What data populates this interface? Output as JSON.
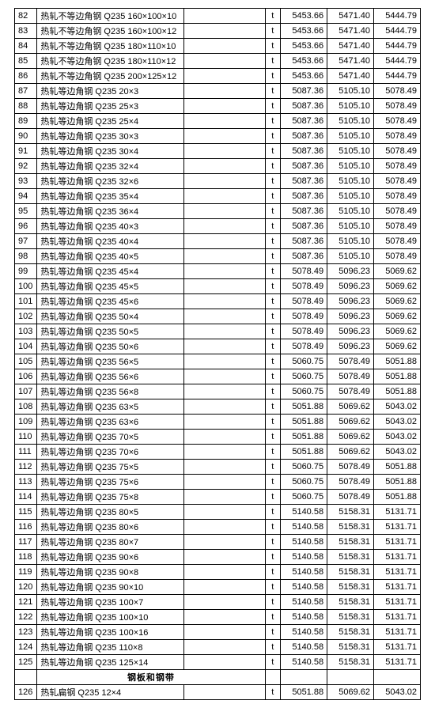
{
  "section_header": "钢板和钢带",
  "rows": [
    {
      "idx": "82",
      "desc": "热轧不等边角钢 Q235 160×100×10",
      "unit": "t",
      "v1": "5453.66",
      "v2": "5471.40",
      "v3": "5444.79"
    },
    {
      "idx": "83",
      "desc": "热轧不等边角钢 Q235 160×100×12",
      "unit": "t",
      "v1": "5453.66",
      "v2": "5471.40",
      "v3": "5444.79"
    },
    {
      "idx": "84",
      "desc": "热轧不等边角钢 Q235 180×110×10",
      "unit": "t",
      "v1": "5453.66",
      "v2": "5471.40",
      "v3": "5444.79"
    },
    {
      "idx": "85",
      "desc": "热轧不等边角钢 Q235 180×110×12",
      "unit": "t",
      "v1": "5453.66",
      "v2": "5471.40",
      "v3": "5444.79"
    },
    {
      "idx": "86",
      "desc": "热轧不等边角钢 Q235 200×125×12",
      "unit": "t",
      "v1": "5453.66",
      "v2": "5471.40",
      "v3": "5444.79"
    },
    {
      "idx": "87",
      "desc": "热轧等边角钢   Q235 20×3",
      "unit": "t",
      "v1": "5087.36",
      "v2": "5105.10",
      "v3": "5078.49"
    },
    {
      "idx": "88",
      "desc": "热轧等边角钢   Q235 25×3",
      "unit": "t",
      "v1": "5087.36",
      "v2": "5105.10",
      "v3": "5078.49"
    },
    {
      "idx": "89",
      "desc": "热轧等边角钢   Q235 25×4",
      "unit": "t",
      "v1": "5087.36",
      "v2": "5105.10",
      "v3": "5078.49"
    },
    {
      "idx": "90",
      "desc": "热轧等边角钢   Q235 30×3",
      "unit": "t",
      "v1": "5087.36",
      "v2": "5105.10",
      "v3": "5078.49"
    },
    {
      "idx": "91",
      "desc": "热轧等边角钢   Q235 30×4",
      "unit": "t",
      "v1": "5087.36",
      "v2": "5105.10",
      "v3": "5078.49"
    },
    {
      "idx": "92",
      "desc": "热轧等边角钢   Q235 32×4",
      "unit": "t",
      "v1": "5087.36",
      "v2": "5105.10",
      "v3": "5078.49"
    },
    {
      "idx": "93",
      "desc": "热轧等边角钢   Q235 32×6",
      "unit": "t",
      "v1": "5087.36",
      "v2": "5105.10",
      "v3": "5078.49"
    },
    {
      "idx": "94",
      "desc": "热轧等边角钢   Q235 35×4",
      "unit": "t",
      "v1": "5087.36",
      "v2": "5105.10",
      "v3": "5078.49"
    },
    {
      "idx": "95",
      "desc": "热轧等边角钢   Q235 36×4",
      "unit": "t",
      "v1": "5087.36",
      "v2": "5105.10",
      "v3": "5078.49"
    },
    {
      "idx": "96",
      "desc": "热轧等边角钢   Q235 40×3",
      "unit": "t",
      "v1": "5087.36",
      "v2": "5105.10",
      "v3": "5078.49"
    },
    {
      "idx": "97",
      "desc": "热轧等边角钢   Q235 40×4",
      "unit": "t",
      "v1": "5087.36",
      "v2": "5105.10",
      "v3": "5078.49"
    },
    {
      "idx": "98",
      "desc": "热轧等边角钢   Q235 40×5",
      "unit": "t",
      "v1": "5087.36",
      "v2": "5105.10",
      "v3": "5078.49"
    },
    {
      "idx": "99",
      "desc": "热轧等边角钢   Q235 45×4",
      "unit": "t",
      "v1": "5078.49",
      "v2": "5096.23",
      "v3": "5069.62"
    },
    {
      "idx": "100",
      "desc": "热轧等边角钢   Q235 45×5",
      "unit": "t",
      "v1": "5078.49",
      "v2": "5096.23",
      "v3": "5069.62"
    },
    {
      "idx": "101",
      "desc": "热轧等边角钢   Q235 45×6",
      "unit": "t",
      "v1": "5078.49",
      "v2": "5096.23",
      "v3": "5069.62"
    },
    {
      "idx": "102",
      "desc": "热轧等边角钢   Q235 50×4",
      "unit": "t",
      "v1": "5078.49",
      "v2": "5096.23",
      "v3": "5069.62"
    },
    {
      "idx": "103",
      "desc": "热轧等边角钢   Q235 50×5",
      "unit": "t",
      "v1": "5078.49",
      "v2": "5096.23",
      "v3": "5069.62"
    },
    {
      "idx": "104",
      "desc": "热轧等边角钢   Q235 50×6",
      "unit": "t",
      "v1": "5078.49",
      "v2": "5096.23",
      "v3": "5069.62"
    },
    {
      "idx": "105",
      "desc": "热轧等边角钢   Q235 56×5",
      "unit": "t",
      "v1": "5060.75",
      "v2": "5078.49",
      "v3": "5051.88"
    },
    {
      "idx": "106",
      "desc": "热轧等边角钢   Q235 56×6",
      "unit": "t",
      "v1": "5060.75",
      "v2": "5078.49",
      "v3": "5051.88"
    },
    {
      "idx": "107",
      "desc": "热轧等边角钢   Q235 56×8",
      "unit": "t",
      "v1": "5060.75",
      "v2": "5078.49",
      "v3": "5051.88"
    },
    {
      "idx": "108",
      "desc": "热轧等边角钢   Q235 63×5",
      "unit": "t",
      "v1": "5051.88",
      "v2": "5069.62",
      "v3": "5043.02"
    },
    {
      "idx": "109",
      "desc": "热轧等边角钢   Q235 63×6",
      "unit": "t",
      "v1": "5051.88",
      "v2": "5069.62",
      "v3": "5043.02"
    },
    {
      "idx": "110",
      "desc": "热轧等边角钢   Q235 70×5",
      "unit": "t",
      "v1": "5051.88",
      "v2": "5069.62",
      "v3": "5043.02"
    },
    {
      "idx": "111",
      "desc": "热轧等边角钢   Q235 70×6",
      "unit": "t",
      "v1": "5051.88",
      "v2": "5069.62",
      "v3": "5043.02"
    },
    {
      "idx": "112",
      "desc": "热轧等边角钢   Q235 75×5",
      "unit": "t",
      "v1": "5060.75",
      "v2": "5078.49",
      "v3": "5051.88"
    },
    {
      "idx": "113",
      "desc": "热轧等边角钢   Q235 75×6",
      "unit": "t",
      "v1": "5060.75",
      "v2": "5078.49",
      "v3": "5051.88"
    },
    {
      "idx": "114",
      "desc": "热轧等边角钢   Q235 75×8",
      "unit": "t",
      "v1": "5060.75",
      "v2": "5078.49",
      "v3": "5051.88"
    },
    {
      "idx": "115",
      "desc": "热轧等边角钢   Q235 80×5",
      "unit": "t",
      "v1": "5140.58",
      "v2": "5158.31",
      "v3": "5131.71"
    },
    {
      "idx": "116",
      "desc": "热轧等边角钢   Q235 80×6",
      "unit": "t",
      "v1": "5140.58",
      "v2": "5158.31",
      "v3": "5131.71"
    },
    {
      "idx": "117",
      "desc": "热轧等边角钢   Q235 80×7",
      "unit": "t",
      "v1": "5140.58",
      "v2": "5158.31",
      "v3": "5131.71"
    },
    {
      "idx": "118",
      "desc": "热轧等边角钢   Q235 90×6",
      "unit": "t",
      "v1": "5140.58",
      "v2": "5158.31",
      "v3": "5131.71"
    },
    {
      "idx": "119",
      "desc": "热轧等边角钢   Q235 90×8",
      "unit": "t",
      "v1": "5140.58",
      "v2": "5158.31",
      "v3": "5131.71"
    },
    {
      "idx": "120",
      "desc": "热轧等边角钢   Q235 90×10",
      "unit": "t",
      "v1": "5140.58",
      "v2": "5158.31",
      "v3": "5131.71"
    },
    {
      "idx": "121",
      "desc": "热轧等边角钢   Q235 100×7",
      "unit": "t",
      "v1": "5140.58",
      "v2": "5158.31",
      "v3": "5131.71"
    },
    {
      "idx": "122",
      "desc": "热轧等边角钢   Q235 100×10",
      "unit": "t",
      "v1": "5140.58",
      "v2": "5158.31",
      "v3": "5131.71"
    },
    {
      "idx": "123",
      "desc": "热轧等边角钢   Q235 100×16",
      "unit": "t",
      "v1": "5140.58",
      "v2": "5158.31",
      "v3": "5131.71"
    },
    {
      "idx": "124",
      "desc": "热轧等边角钢   Q235 110×8",
      "unit": "t",
      "v1": "5140.58",
      "v2": "5158.31",
      "v3": "5131.71"
    },
    {
      "idx": "125",
      "desc": "热轧等边角钢   Q235 125×14",
      "unit": "t",
      "v1": "5140.58",
      "v2": "5158.31",
      "v3": "5131.71"
    }
  ],
  "rows2": [
    {
      "idx": "126",
      "desc": "热轧扁钢 Q235 12×4",
      "unit": "t",
      "v1": "5051.88",
      "v2": "5069.62",
      "v3": "5043.02"
    }
  ]
}
